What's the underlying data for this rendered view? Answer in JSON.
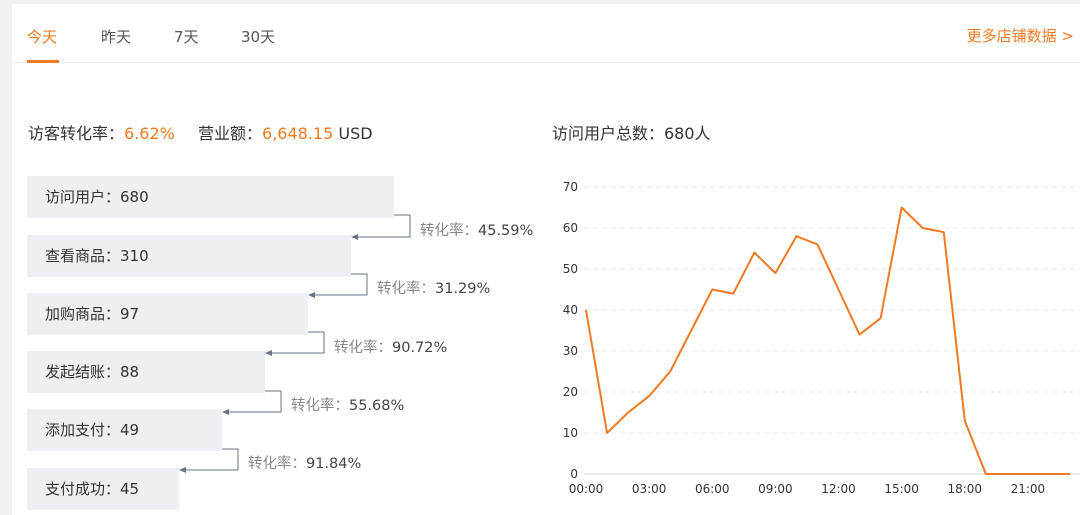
{
  "tabs": [
    {
      "label": "今天",
      "active": true
    },
    {
      "label": "昨天",
      "active": false
    },
    {
      "label": "7天",
      "active": false
    },
    {
      "label": "30天",
      "active": false
    }
  ],
  "more_link": "更多店铺数据 >",
  "stats": {
    "conversion_label": "访客转化率：",
    "conversion_value": "6.62%",
    "revenue_label": "营业额：",
    "revenue_value": "6,648.15",
    "revenue_unit": " USD",
    "visitors_total": "访问用户总数：680人"
  },
  "funnel": [
    {
      "label": "访问用户：680",
      "value": 680
    },
    {
      "label": "查看商品：310",
      "value": 310
    },
    {
      "label": "加购商品：97",
      "value": 97
    },
    {
      "label": "发起结账：88",
      "value": 88
    },
    {
      "label": "添加支付：49",
      "value": 49
    },
    {
      "label": "支付成功：45",
      "value": 45
    }
  ],
  "rates": [
    {
      "label": "转化率：",
      "value": "45.59%"
    },
    {
      "label": "转化率：",
      "value": "31.29%"
    },
    {
      "label": "转化率：",
      "value": "90.72%"
    },
    {
      "label": "转化率：",
      "value": "55.68%"
    },
    {
      "label": "转化率：",
      "value": "91.84%"
    }
  ],
  "colors": {
    "accent": "#f07a23",
    "bar_bg": "#eeeff3",
    "line": "#f07a23"
  },
  "chart_data": {
    "type": "line",
    "title": "",
    "xlabel": "",
    "ylabel": "",
    "ylim": [
      0,
      70
    ],
    "yticks": [
      0,
      10,
      20,
      30,
      40,
      50,
      60,
      70
    ],
    "xticks": [
      "00:00",
      "03:00",
      "06:00",
      "09:00",
      "12:00",
      "15:00",
      "18:00",
      "21:00"
    ],
    "grid": true,
    "series": [
      {
        "x": [
          0,
          1,
          2,
          3,
          4,
          5,
          6,
          7,
          8,
          9,
          10,
          11,
          12,
          13,
          14,
          15,
          16,
          17,
          18,
          19,
          20,
          21,
          22,
          23
        ],
        "values": [
          40,
          10,
          15,
          19,
          25,
          35,
          45,
          44,
          54,
          49,
          58,
          56,
          45,
          34,
          38,
          65,
          60,
          59,
          13,
          0,
          0,
          0,
          0,
          0
        ]
      }
    ]
  }
}
